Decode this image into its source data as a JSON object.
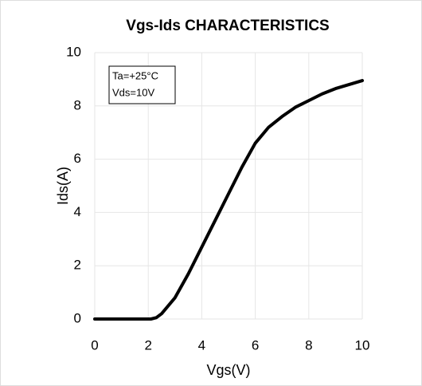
{
  "chart_data": {
    "type": "line",
    "title": "Vgs-Ids CHARACTERISTICS",
    "x_label": "Vgs(V)",
    "y_label": "Ids(A)",
    "annotations": [
      "Ta=+25°C",
      "Vds=10V"
    ],
    "x": [
      0,
      0.5,
      1,
      1.5,
      2,
      2.1,
      2.3,
      2.5,
      3,
      3.5,
      4,
      4.5,
      5,
      5.5,
      6,
      6.5,
      7,
      7.5,
      8,
      8.5,
      9,
      9.5,
      10
    ],
    "series": [
      {
        "name": "Ids",
        "color": "#000000",
        "values": [
          0,
          0,
          0,
          0,
          0,
          0,
          0.05,
          0.2,
          0.8,
          1.7,
          2.7,
          3.7,
          4.7,
          5.7,
          6.6,
          7.2,
          7.6,
          7.95,
          8.2,
          8.45,
          8.65,
          8.8,
          8.95
        ]
      }
    ],
    "xlim": [
      0,
      10
    ],
    "xticks": [
      0,
      2,
      4,
      6,
      8,
      10
    ],
    "ylim": [
      0,
      10
    ],
    "yticks": [
      0,
      2,
      4,
      6,
      8,
      10
    ],
    "grid": true
  }
}
